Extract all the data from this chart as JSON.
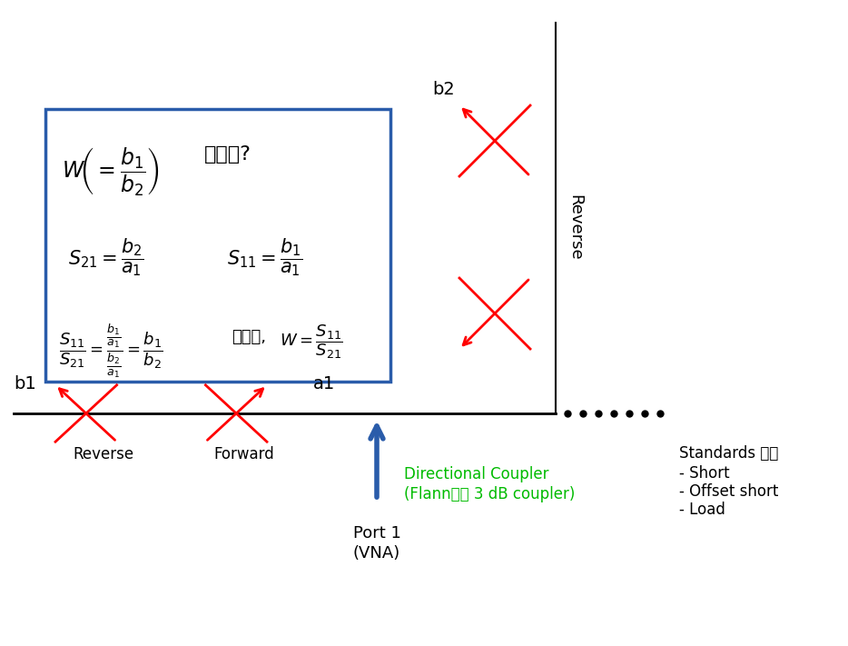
{
  "bg_color": "#ffffff",
  "box_color": "#2a5caa",
  "red_color": "#ff0000",
  "blue_color": "#2a5caa",
  "green_color": "#00bb00",
  "black_color": "#000000",
  "label_b2": "b2",
  "label_reverse_vert": "Reverse",
  "label_b1": "b1",
  "label_a1": "a1",
  "label_reverse_horiz": "Reverse",
  "label_forward": "Forward",
  "label_coupler_line1": "Directional Coupler",
  "label_coupler_line2": "(Flann사의 3 dB coupler)",
  "label_port_line1": "Port 1",
  "label_port_line2": "(VNA)",
  "label_standards_line1": "Standards 연결",
  "label_standards_line2": "- Short",
  "label_standards_line3": "- Offset short",
  "label_standards_line4": "- Load",
  "korean_guhagi": "구하기?",
  "korean_imuро": "이므로,"
}
